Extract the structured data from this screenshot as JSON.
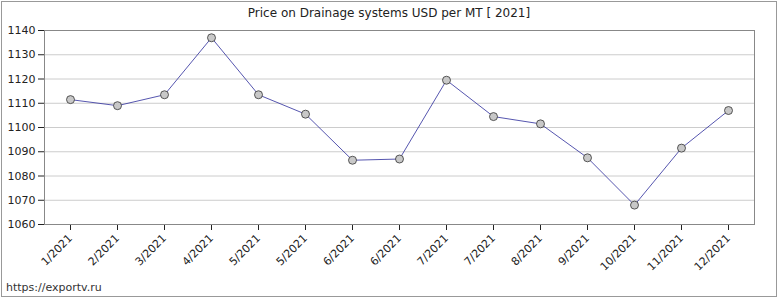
{
  "chart_data": {
    "type": "line",
    "title": "Price on Drainage systems USD per MT [ 2021]",
    "caption": "https://exportv.ru",
    "categories": [
      "1/2021",
      "2/2021",
      "3/2021",
      "4/2021",
      "5/2021",
      "5/2021",
      "6/2021",
      "6/2021",
      "7/2021",
      "7/2021",
      "8/2021",
      "9/2021",
      "10/2021",
      "11/2021",
      "12/2021"
    ],
    "values": [
      1111.5,
      1109,
      1113.5,
      1137,
      1113.5,
      1105.5,
      1086.5,
      1087,
      1119.5,
      1104.5,
      1101.5,
      1087.5,
      1068,
      1091.5,
      1107
    ],
    "color": "#2b2b9a",
    "marker": "circle",
    "ylim": [
      1060,
      1140
    ],
    "yticks": [
      1060,
      1070,
      1080,
      1090,
      1100,
      1110,
      1120,
      1130,
      1140
    ],
    "grid": true
  }
}
